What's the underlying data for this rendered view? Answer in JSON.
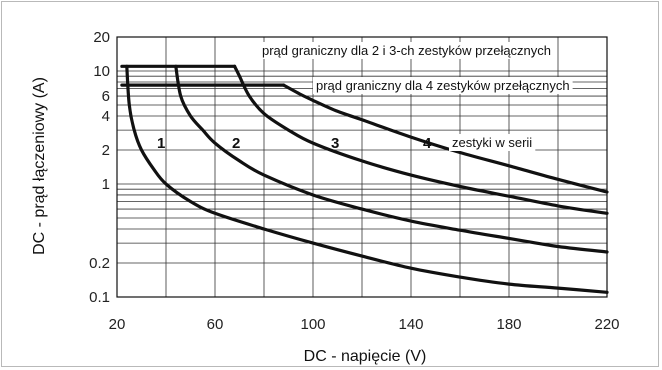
{
  "chart_data": {
    "type": "line",
    "title": "",
    "xlabel": "DC - napięcie (V)",
    "ylabel": "DC - prąd łączeniowy (A)",
    "xlim": [
      20,
      220
    ],
    "ylim": [
      0.1,
      20
    ],
    "y_scale": "log",
    "x_ticks": [
      20,
      60,
      100,
      140,
      180,
      220
    ],
    "y_ticks": [
      0.1,
      0.2,
      1,
      2,
      4,
      6,
      10,
      20
    ],
    "grid": true,
    "series": [
      {
        "name": "1",
        "points": [
          [
            24,
            11
          ],
          [
            25,
            5
          ],
          [
            27,
            3
          ],
          [
            30,
            2
          ],
          [
            35,
            1.35
          ],
          [
            40,
            1.0
          ],
          [
            50,
            0.7
          ],
          [
            60,
            0.55
          ],
          [
            80,
            0.4
          ],
          [
            100,
            0.3
          ],
          [
            120,
            0.23
          ],
          [
            140,
            0.18
          ],
          [
            160,
            0.15
          ],
          [
            180,
            0.13
          ],
          [
            200,
            0.12
          ],
          [
            220,
            0.11
          ]
        ]
      },
      {
        "name": "2",
        "points": [
          [
            44,
            11
          ],
          [
            46,
            6
          ],
          [
            50,
            4
          ],
          [
            55,
            3
          ],
          [
            60,
            2.3
          ],
          [
            70,
            1.6
          ],
          [
            80,
            1.2
          ],
          [
            100,
            0.8
          ],
          [
            120,
            0.6
          ],
          [
            140,
            0.47
          ],
          [
            160,
            0.39
          ],
          [
            180,
            0.33
          ],
          [
            200,
            0.28
          ],
          [
            220,
            0.25
          ]
        ]
      },
      {
        "name": "3",
        "points": [
          [
            68,
            11
          ],
          [
            70,
            9
          ],
          [
            74,
            6
          ],
          [
            80,
            4.2
          ],
          [
            90,
            3.0
          ],
          [
            100,
            2.3
          ],
          [
            120,
            1.6
          ],
          [
            140,
            1.2
          ],
          [
            160,
            0.95
          ],
          [
            180,
            0.78
          ],
          [
            200,
            0.64
          ],
          [
            220,
            0.55
          ]
        ]
      },
      {
        "name": "4",
        "points": [
          [
            88,
            7.5
          ],
          [
            95,
            6.2
          ],
          [
            100,
            5.5
          ],
          [
            110,
            4.4
          ],
          [
            120,
            3.7
          ],
          [
            140,
            2.6
          ],
          [
            160,
            1.9
          ],
          [
            180,
            1.45
          ],
          [
            200,
            1.1
          ],
          [
            220,
            0.85
          ]
        ]
      }
    ],
    "limit_lines": [
      {
        "label": "prąd graniczny dla 2 i 3-ch zestyków przełącznych",
        "y": 11,
        "x_from": 22,
        "x_to": 68
      },
      {
        "label": "prąd graniczny dla 4 zestyków przełącznych",
        "y": 7.5,
        "x_from": 22,
        "x_to": 88
      }
    ],
    "annotations": [
      {
        "text": "zestyki w serii"
      }
    ]
  }
}
